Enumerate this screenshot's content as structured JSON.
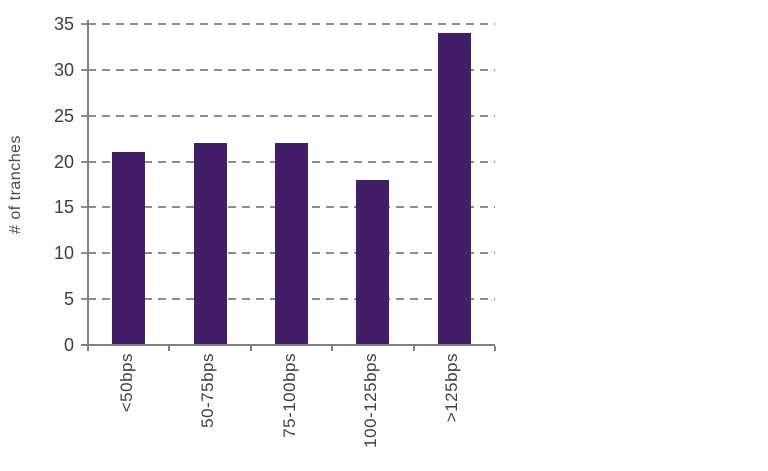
{
  "chart_data": {
    "type": "bar",
    "categories": [
      "<50bps",
      "50-75bps",
      "75-100bps",
      "100-125bps",
      ">125bps"
    ],
    "values": [
      21,
      22,
      22,
      18,
      34
    ],
    "title": "",
    "xlabel": "",
    "ylabel": "# of tranches",
    "ylim": [
      0,
      35
    ],
    "yticks": [
      0,
      5,
      10,
      15,
      20,
      25,
      30,
      35
    ],
    "grid": "horizontal-dashed",
    "legend_position": "none",
    "colors": {
      "bar": "#421e68",
      "grid": "#8c8c8c",
      "axis": "#7f7f7f",
      "tick_text": "#3f3f3f",
      "axis_title_text": "#4a4a4a",
      "background": "#ffffff"
    }
  }
}
